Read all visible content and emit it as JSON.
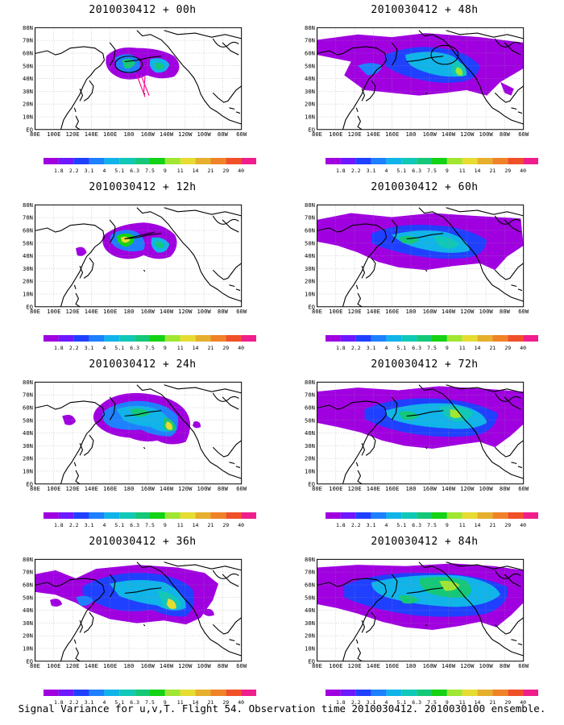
{
  "footer": "Signal Variance for u,v,T. Flight 54. Observation time 2010030412. 2010030100 ensemble.",
  "lat_labels": [
    "80N",
    "70N",
    "60N",
    "50N",
    "40N",
    "30N",
    "20N",
    "10N",
    "EQ"
  ],
  "lon_labels": [
    "80E",
    "100E",
    "120E",
    "140E",
    "160E",
    "180",
    "160W",
    "140W",
    "120W",
    "100W",
    "80W",
    "60W"
  ],
  "colorbar": {
    "levels": [
      "1.8",
      "2.2",
      "3.1",
      "4",
      "5.1",
      "6.3",
      "7.5",
      "9",
      "11",
      "14",
      "21",
      "29",
      "40"
    ],
    "colors": [
      "#a000e0",
      "#6e18ff",
      "#2040ff",
      "#1e80ff",
      "#10b4e8",
      "#10c8b8",
      "#14c878",
      "#14d214",
      "#a0e632",
      "#e6dc32",
      "#e6af2d",
      "#f08228",
      "#f05028",
      "#f01e8c"
    ]
  },
  "panels": [
    {
      "id": "p00",
      "title": "2010030412 + 00h"
    },
    {
      "id": "p48",
      "title": "2010030412 + 48h"
    },
    {
      "id": "p12",
      "title": "2010030412 + 12h"
    },
    {
      "id": "p60",
      "title": "2010030412 + 60h"
    },
    {
      "id": "p24",
      "title": "2010030412 + 24h"
    },
    {
      "id": "p72",
      "title": "2010030412 + 72h"
    },
    {
      "id": "p36",
      "title": "2010030412 + 36h"
    },
    {
      "id": "p84",
      "title": "2010030412 + 84h"
    }
  ]
}
